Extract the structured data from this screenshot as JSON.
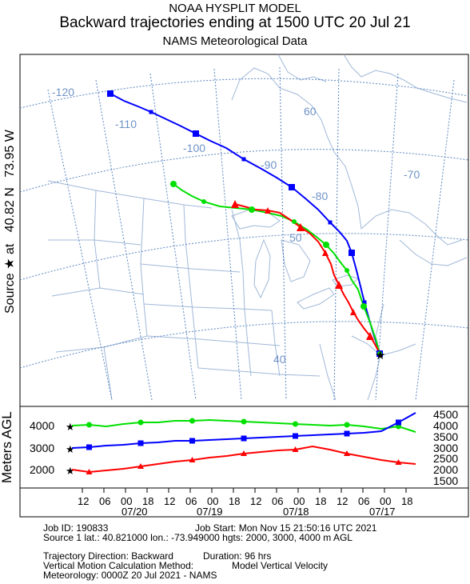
{
  "titles": {
    "line1": "NOAA HYSPLIT MODEL",
    "line2": "Backward trajectories ending at 1500 UTC 20 Jul 21",
    "line3": "NAMS Meteorological Data"
  },
  "source_label": {
    "prefix": "Source",
    "at": "at",
    "lat": "40.82 N",
    "lon": "73.95 W"
  },
  "map": {
    "lon_labels": [
      "-120",
      "-110",
      "-100",
      "-90",
      "-80",
      "-70"
    ],
    "lat_labels": [
      "60",
      "50",
      "40"
    ]
  },
  "colors": {
    "traj_2000": "#ff0000",
    "traj_3000": "#0000ff",
    "traj_4000": "#00e000",
    "land_border": "#a0b8d8",
    "graticule": "#5a86c0",
    "grid_labels": "#6f93c6"
  },
  "trajectories": [
    {
      "height_m": 2000,
      "color": "red",
      "marker": "triangle"
    },
    {
      "height_m": 3000,
      "color": "blue",
      "marker": "square"
    },
    {
      "height_m": 4000,
      "color": "green",
      "marker": "circle"
    }
  ],
  "profile": {
    "ylabel": "Meters AGL",
    "left_ticks": [
      "4000",
      "3000",
      "2000"
    ],
    "right_ticks": [
      "4500",
      "4000",
      "3500",
      "3000",
      "2500",
      "2000",
      "1500"
    ],
    "time_ticks": [
      "12",
      "06",
      "00",
      "18",
      "12",
      "06",
      "00",
      "18",
      "12",
      "06",
      "00",
      "18",
      "12",
      "06",
      "00",
      "18"
    ],
    "date_labels": [
      "07/20",
      "07/19",
      "07/18",
      "07/17"
    ]
  },
  "info": {
    "job_id": "Job ID: 190833",
    "job_start": "Job Start: Mon Nov 15 21:50:16 UTC 2021",
    "source1": "Source 1 lat.: 40.821000   lon.: -73.949000   hgts: 2000, 3000, 4000 m AGL",
    "direction": "Trajectory Direction: Backward",
    "duration": "Duration: 96 hrs",
    "vertical": "Vertical Motion Calculation Method:",
    "vertical_value": "Model Vertical Velocity",
    "meteorology": "Meteorology: 0000Z 20 Jul 2021 - NAMS"
  }
}
